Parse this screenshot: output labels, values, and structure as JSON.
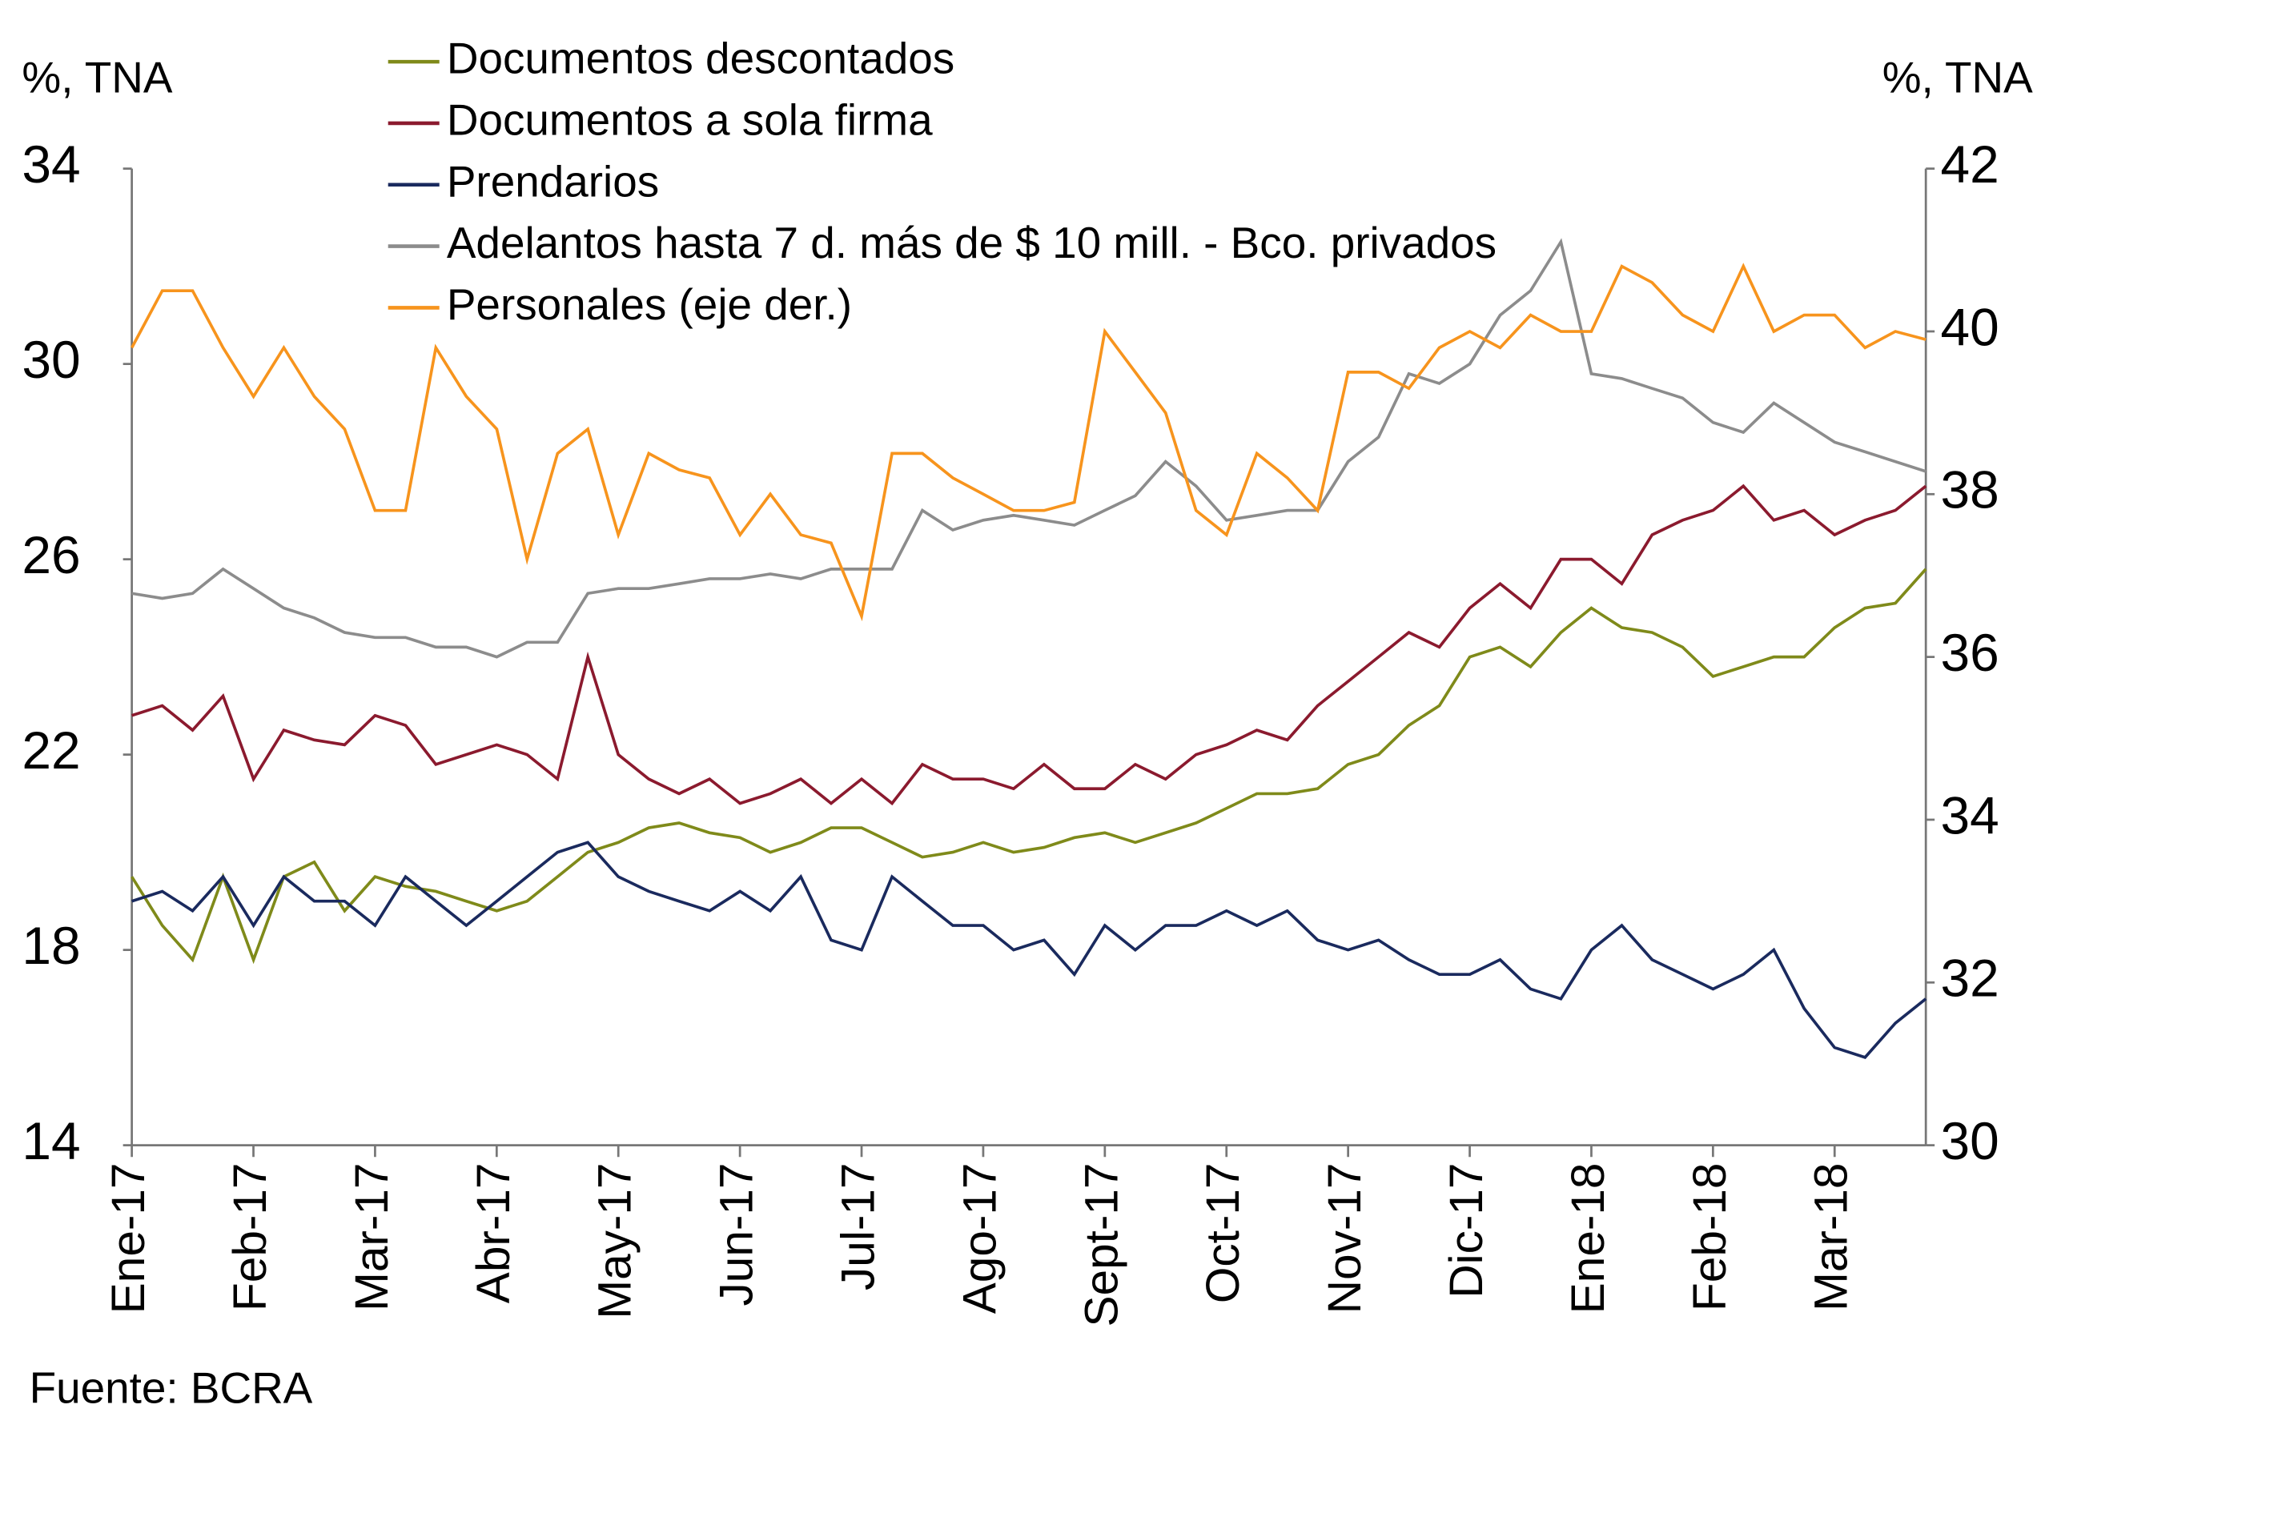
{
  "chart_data": {
    "type": "line",
    "y_label": "%, TNA",
    "y2_label": "%, TNA",
    "source": "Fuente: BCRA",
    "categories": [
      "Ene-17",
      null,
      null,
      null,
      "Feb-17",
      null,
      null,
      null,
      "Mar-17",
      null,
      null,
      null,
      "Abr-17",
      null,
      null,
      null,
      "May-17",
      null,
      null,
      null,
      "Jun-17",
      null,
      null,
      null,
      "Jul-17",
      null,
      null,
      null,
      "Ago-17",
      null,
      null,
      null,
      "Sept-17",
      null,
      null,
      null,
      "Oct-17",
      null,
      null,
      null,
      "Nov-17",
      null,
      null,
      null,
      "Dic-17",
      null,
      null,
      null,
      "Ene-18",
      null,
      null,
      null,
      "Feb-18",
      null,
      null,
      null,
      "Mar-18",
      null,
      null,
      null
    ],
    "ylim": [
      14,
      34
    ],
    "yticks": [
      14,
      18,
      22,
      26,
      30,
      34
    ],
    "y2lim": [
      30,
      42
    ],
    "y2ticks": [
      30,
      32,
      34,
      36,
      38,
      40,
      42
    ],
    "legend": "top-left",
    "series": [
      {
        "name": "Documentos descontados",
        "color": "#7f8a1a",
        "values": [
          19.5,
          18.5,
          17.8,
          19.5,
          17.8,
          19.5,
          19.8,
          18.8,
          19.5,
          19.3,
          19.2,
          19.0,
          18.8,
          19.0,
          19.5,
          20.0,
          20.2,
          20.5,
          20.6,
          20.4,
          20.3,
          20.0,
          20.2,
          20.5,
          20.5,
          20.2,
          19.9,
          20.0,
          20.2,
          20.0,
          20.1,
          20.3,
          20.4,
          20.2,
          20.4,
          20.6,
          20.9,
          21.2,
          21.2,
          21.3,
          21.8,
          22.0,
          22.6,
          23.0,
          24.0,
          24.2,
          23.8,
          24.5,
          25.0,
          24.6,
          24.5,
          24.2,
          23.6,
          23.8,
          24.0,
          24.0,
          24.6,
          25.0,
          25.1,
          25.8
        ]
      },
      {
        "name": "Documentos a sola firma",
        "color": "#8b1a2e",
        "values": [
          22.8,
          23.0,
          22.5,
          23.2,
          21.5,
          22.5,
          22.3,
          22.2,
          22.8,
          22.6,
          21.8,
          22.0,
          22.2,
          22.0,
          21.5,
          24.0,
          22.0,
          21.5,
          21.2,
          21.5,
          21.0,
          21.2,
          21.5,
          21.0,
          21.5,
          21.0,
          21.8,
          21.5,
          21.5,
          21.3,
          21.8,
          21.3,
          21.3,
          21.8,
          21.5,
          22.0,
          22.2,
          22.5,
          22.3,
          23.0,
          23.5,
          24.0,
          24.5,
          24.2,
          25.0,
          25.5,
          25.0,
          26.0,
          26.0,
          25.5,
          26.5,
          26.8,
          27.0,
          27.5,
          26.8,
          27.0,
          26.5,
          26.8,
          27.0,
          27.5
        ]
      },
      {
        "name": "Prendarios",
        "color": "#1a2a5e",
        "values": [
          19.0,
          19.2,
          18.8,
          19.5,
          18.5,
          19.5,
          19.0,
          19.0,
          18.5,
          19.5,
          19.0,
          18.5,
          19.0,
          19.5,
          20.0,
          20.2,
          19.5,
          19.2,
          19.0,
          18.8,
          19.2,
          18.8,
          19.5,
          18.2,
          18.0,
          19.5,
          19.0,
          18.5,
          18.5,
          18.0,
          18.2,
          17.5,
          18.5,
          18.0,
          18.5,
          18.5,
          18.8,
          18.5,
          18.8,
          18.2,
          18.0,
          18.2,
          17.8,
          17.5,
          17.5,
          17.8,
          17.2,
          17.0,
          18.0,
          18.5,
          17.8,
          17.5,
          17.2,
          17.5,
          18.0,
          16.8,
          16.0,
          15.8,
          16.5,
          17.0
        ]
      },
      {
        "name": "Adelantos hasta 7 d. más de $ 10 mill. - Bco. privados",
        "color": "#8c8c8c",
        "values": [
          25.3,
          25.2,
          25.3,
          25.8,
          25.4,
          25.0,
          24.8,
          24.5,
          24.4,
          24.4,
          24.2,
          24.2,
          24.0,
          24.3,
          24.3,
          25.3,
          25.4,
          25.4,
          25.5,
          25.6,
          25.6,
          25.7,
          25.6,
          25.8,
          25.8,
          25.8,
          27.0,
          26.6,
          26.8,
          26.9,
          26.8,
          26.7,
          27.0,
          27.3,
          28.0,
          27.5,
          26.8,
          26.9,
          27.0,
          27.0,
          28.0,
          28.5,
          29.8,
          29.6,
          30.0,
          31.0,
          31.5,
          32.5,
          29.8,
          29.7,
          29.5,
          29.3,
          28.8,
          28.6,
          29.2,
          28.8,
          28.4,
          28.2,
          28.0,
          27.8
        ]
      },
      {
        "name": "Personales (eje der.)",
        "color": "#f7941d",
        "axis": "y2",
        "values": [
          39.8,
          40.5,
          40.5,
          39.8,
          39.2,
          39.8,
          39.2,
          38.8,
          37.8,
          37.8,
          39.8,
          39.2,
          38.8,
          37.2,
          38.5,
          38.8,
          37.5,
          38.5,
          38.3,
          38.2,
          37.5,
          38.0,
          37.5,
          37.4,
          36.5,
          38.5,
          38.5,
          38.2,
          38.0,
          37.8,
          37.8,
          37.9,
          40.0,
          39.5,
          39.0,
          37.8,
          37.5,
          38.5,
          38.2,
          37.8,
          39.5,
          39.5,
          39.3,
          39.8,
          40.0,
          39.8,
          40.2,
          40.0,
          40.0,
          40.8,
          40.6,
          40.2,
          40.0,
          40.8,
          40.0,
          40.2,
          40.2,
          39.8,
          40.0,
          39.9
        ]
      }
    ]
  }
}
